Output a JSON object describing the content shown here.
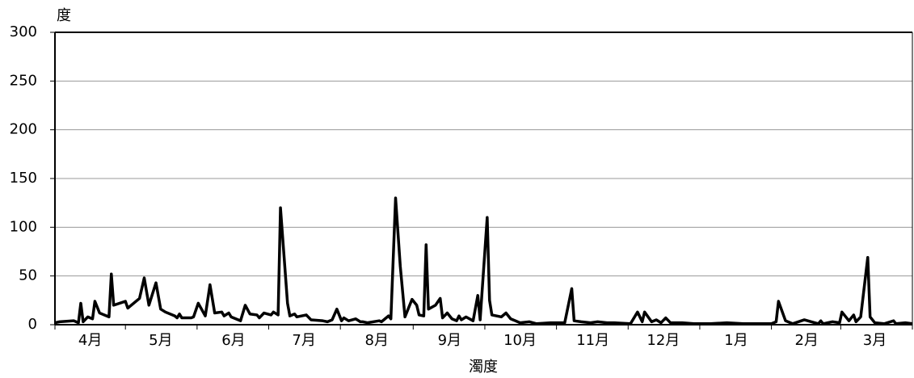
{
  "chart_data": {
    "type": "line",
    "y_label": "度",
    "x_label": "濁度",
    "x": [
      0,
      2,
      8,
      10,
      11,
      12,
      14,
      16,
      17,
      19,
      22,
      23,
      24,
      25,
      30,
      31,
      36,
      38,
      40,
      43,
      45,
      47,
      51,
      52,
      53,
      54,
      58,
      59,
      61,
      64,
      66,
      68,
      71,
      72,
      74,
      75,
      79,
      81,
      83,
      86,
      87,
      89,
      92,
      93,
      95,
      96,
      99,
      100,
      102,
      103,
      107,
      109,
      114,
      116,
      118,
      120,
      122,
      123,
      125,
      128,
      130,
      131,
      133,
      138,
      139,
      142,
      143,
      145,
      147,
      149,
      152,
      154,
      155,
      157,
      158,
      159,
      162,
      164,
      165,
      167,
      169,
      171,
      172,
      173,
      175,
      178,
      180,
      181,
      184,
      185,
      186,
      190,
      192,
      194,
      198,
      202,
      205,
      211,
      217,
      220,
      221,
      224,
      228,
      231,
      235,
      238,
      245,
      248,
      250,
      251,
      254,
      256,
      258,
      260,
      262,
      267,
      272,
      279,
      286,
      293,
      300,
      305,
      307,
      308,
      311,
      314,
      319,
      322,
      325,
      326,
      327,
      331,
      334,
      335,
      338,
      340,
      341,
      343,
      346,
      347,
      349,
      353,
      357,
      358,
      362,
      365
    ],
    "series": [
      {
        "name": "濁度",
        "color": "#000000",
        "values": [
          2,
          3,
          4,
          2,
          22,
          3,
          8,
          6,
          24,
          12,
          9,
          8,
          52,
          20,
          24,
          17,
          27,
          48,
          20,
          43,
          16,
          13,
          9,
          7,
          11,
          7,
          7,
          8,
          22,
          9,
          41,
          12,
          13,
          9,
          12,
          8,
          4,
          20,
          11,
          10,
          7,
          12,
          10,
          13,
          10,
          120,
          22,
          9,
          11,
          8,
          10,
          5,
          4,
          3,
          5,
          16,
          4,
          7,
          4,
          6,
          3,
          3,
          2,
          4,
          3,
          9,
          6,
          130,
          60,
          8,
          26,
          20,
          10,
          9,
          82,
          16,
          20,
          27,
          7,
          12,
          6,
          4,
          9,
          5,
          8,
          4,
          30,
          5,
          110,
          25,
          10,
          8,
          12,
          6,
          2,
          3,
          1,
          2,
          2,
          37,
          4,
          3,
          2,
          3,
          2,
          2,
          1,
          13,
          3,
          13,
          3,
          5,
          2,
          7,
          2,
          2,
          1,
          1,
          2,
          1,
          1,
          1,
          3,
          24,
          4,
          1,
          5,
          3,
          1,
          4,
          1,
          3,
          2,
          13,
          4,
          10,
          3,
          8,
          69,
          8,
          2,
          1,
          4,
          1,
          2,
          1
        ]
      }
    ],
    "xlim": [
      0,
      365
    ],
    "xticks": [
      {
        "value": 15,
        "label": "4月"
      },
      {
        "value": 45,
        "label": "5月"
      },
      {
        "value": 76,
        "label": "6月"
      },
      {
        "value": 106,
        "label": "7月"
      },
      {
        "value": 137,
        "label": "8月"
      },
      {
        "value": 168,
        "label": "9月"
      },
      {
        "value": 198,
        "label": "10月"
      },
      {
        "value": 229,
        "label": "11月"
      },
      {
        "value": 259,
        "label": "12月"
      },
      {
        "value": 290,
        "label": "1月"
      },
      {
        "value": 320,
        "label": "2月"
      },
      {
        "value": 349,
        "label": "3月"
      }
    ],
    "ylim": [
      0,
      300
    ],
    "yticks": [
      0,
      50,
      100,
      150,
      200,
      250,
      300
    ],
    "grid": true
  }
}
